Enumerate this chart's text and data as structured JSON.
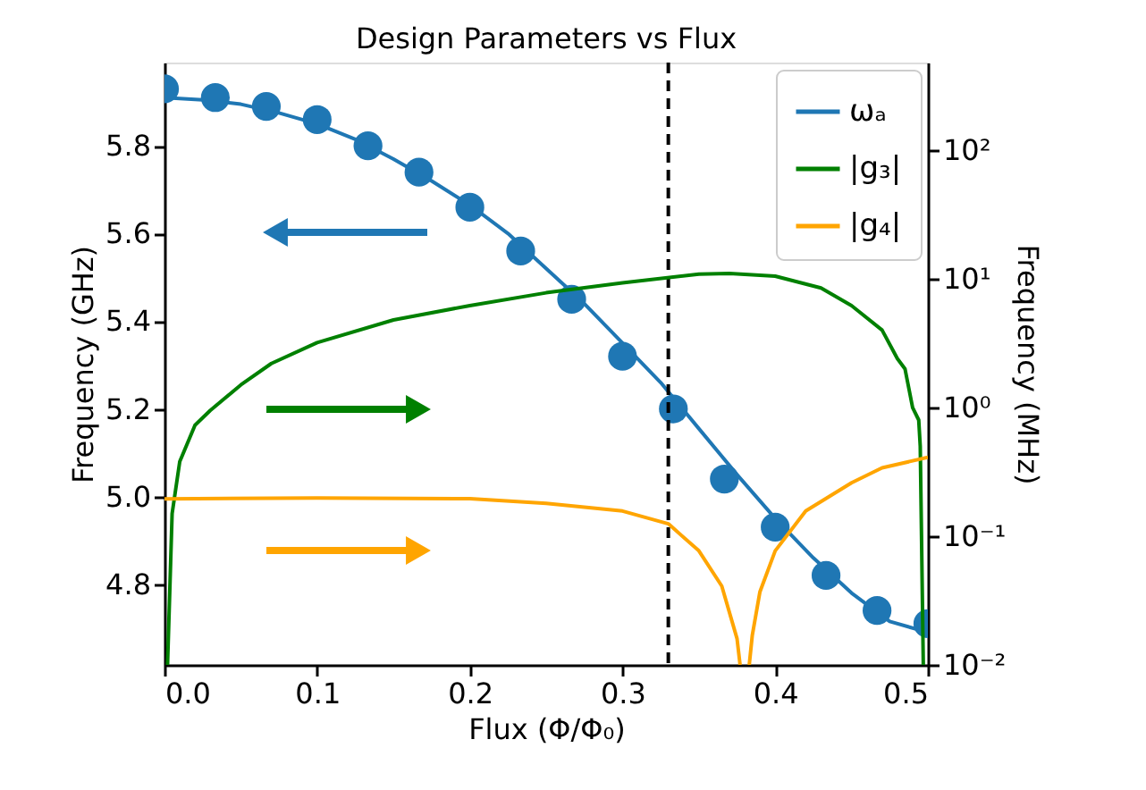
{
  "chart_data": {
    "type": "line",
    "title": "Design Parameters vs Flux",
    "xlabel": "Flux (Φ/Φ₀)",
    "ylabel": "Frequency (GHz)",
    "y2label": "Frequency (MHz)",
    "xlim": [
      0,
      0.5
    ],
    "xticks": [
      {
        "value": 0,
        "label": "0.0"
      },
      0.1,
      0.2,
      0.3,
      0.4,
      0.5
    ],
    "ylim": [
      4.616,
      5.99
    ],
    "yticks": [
      4.8,
      {
        "value": 5,
        "label": "5.0"
      },
      5.2,
      5.4,
      5.6,
      5.8
    ],
    "y2lim": [
      0.01,
      480
    ],
    "y2ticks": [
      {
        "value": 0.01,
        "label": "10⁻²"
      },
      {
        "value": 0.1,
        "label": "10⁻¹"
      },
      {
        "value": 1,
        "label": "10⁰"
      },
      {
        "value": 10,
        "label": "10¹"
      },
      {
        "value": 100,
        "label": "10²"
      }
    ],
    "log": "y2",
    "grid": false,
    "legend": "top right",
    "ref_lines": [
      {
        "axis": "x",
        "value": 0.33,
        "color": "#000000",
        "line_style": "dashed"
      }
    ],
    "series": [
      {
        "name": "ωₐ",
        "color": "#1f77b4",
        "x": [
          0,
          0.025,
          0.05,
          0.075,
          0.1,
          0.125,
          0.15,
          0.175,
          0.2,
          0.225,
          0.25,
          0.275,
          0.3,
          0.325,
          0.35,
          0.375,
          0.4,
          0.425,
          0.45,
          0.475,
          0.5
        ],
        "values": [
          5.91,
          5.905,
          5.895,
          5.875,
          5.85,
          5.815,
          5.77,
          5.72,
          5.665,
          5.6,
          5.52,
          5.44,
          5.35,
          5.26,
          5.155,
          5.05,
          4.95,
          4.86,
          4.78,
          4.715,
          4.69
        ]
      },
      {
        "name": "|g₃|",
        "axis": "y2",
        "color": "#008000",
        "x": [
          0.002,
          0.005,
          0.01,
          0.02,
          0.03,
          0.05,
          0.07,
          0.1,
          0.15,
          0.2,
          0.25,
          0.3,
          0.35,
          0.37,
          0.4,
          0.43,
          0.45,
          0.47,
          0.48,
          0.485,
          0.49,
          0.494,
          0.495,
          0.497
        ],
        "values": [
          0.01,
          0.15,
          0.38,
          0.73,
          0.95,
          1.5,
          2.2,
          3.2,
          4.8,
          6.2,
          7.8,
          9.3,
          10.9,
          11,
          10.5,
          8.5,
          6.2,
          4,
          2.4,
          2.0,
          1.0,
          0.8,
          0.5,
          0.01
        ]
      },
      {
        "name": "|g₄|",
        "axis": "y2",
        "color": "#ffa500",
        "x": [
          0,
          0.1,
          0.2,
          0.25,
          0.3,
          0.33,
          0.35,
          0.365,
          0.375,
          0.377,
          0.38,
          0.383,
          0.385,
          0.39,
          0.4,
          0.42,
          0.45,
          0.47,
          0.5
        ],
        "values": [
          0.195,
          0.198,
          0.196,
          0.18,
          0.157,
          0.125,
          0.077,
          0.041,
          0.016,
          0.01,
          null,
          0.01,
          0.017,
          0.037,
          0.077,
          0.157,
          0.26,
          0.34,
          0.41
        ]
      },
      {
        "type": "scatter",
        "marker": "circle",
        "color": "#1f77b4",
        "x": [
          0,
          0.0333,
          0.0667,
          0.1,
          0.1333,
          0.1667,
          0.2,
          0.2333,
          0.2667,
          0.3,
          0.3333,
          0.3667,
          0.4,
          0.4333,
          0.4667,
          0.5
        ],
        "values": [
          5.93,
          5.91,
          5.89,
          5.86,
          5.8,
          5.74,
          5.66,
          5.56,
          5.45,
          5.32,
          5.2,
          5.04,
          4.93,
          4.82,
          4.74,
          4.71
        ]
      }
    ]
  }
}
